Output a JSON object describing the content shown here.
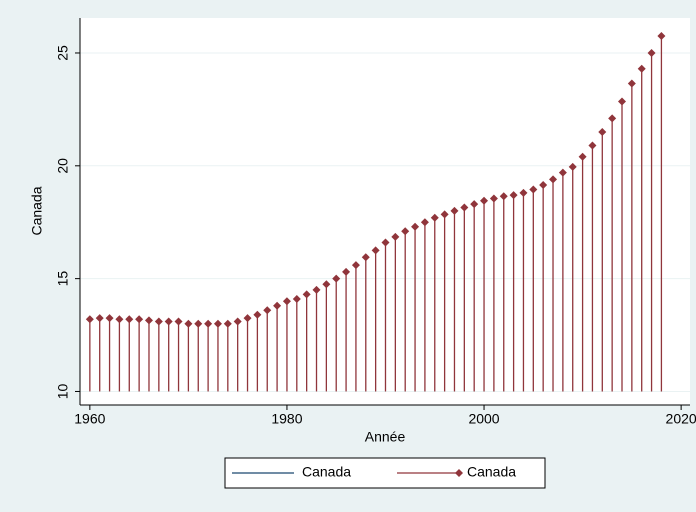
{
  "chart_data": {
    "type": "dropline",
    "x_label": "Année",
    "y_label": "Canada",
    "x": [
      1960,
      1961,
      1962,
      1963,
      1964,
      1965,
      1966,
      1967,
      1968,
      1969,
      1970,
      1971,
      1972,
      1973,
      1974,
      1975,
      1976,
      1977,
      1978,
      1979,
      1980,
      1981,
      1982,
      1983,
      1984,
      1985,
      1986,
      1987,
      1988,
      1989,
      1990,
      1991,
      1992,
      1993,
      1994,
      1995,
      1996,
      1997,
      1998,
      1999,
      2000,
      2001,
      2002,
      2003,
      2004,
      2005,
      2006,
      2007,
      2008,
      2009,
      2010,
      2011,
      2012,
      2013,
      2014,
      2015,
      2016,
      2017,
      2018
    ],
    "series": [
      {
        "name": "Canada",
        "color": "#1a476f",
        "marker": "none",
        "values": [
          null,
          null,
          null,
          null,
          null,
          null,
          null,
          null,
          null,
          null,
          null,
          null,
          null,
          null,
          null,
          null,
          null,
          null,
          null,
          null,
          null,
          null,
          null,
          null,
          null,
          null,
          null,
          null,
          null,
          null,
          null,
          null,
          null,
          null,
          null,
          null,
          null,
          null,
          null,
          null,
          null,
          null,
          null,
          null,
          null,
          null,
          null,
          null,
          null,
          null,
          null,
          null,
          null,
          null,
          null,
          null,
          null,
          null,
          null
        ]
      },
      {
        "name": "Canada",
        "color": "#90353b",
        "marker": "diamond",
        "values": [
          13.2,
          13.25,
          13.25,
          13.2,
          13.2,
          13.2,
          13.15,
          13.1,
          13.1,
          13.1,
          13.0,
          13.0,
          13.0,
          13.0,
          13.0,
          13.1,
          13.25,
          13.4,
          13.6,
          13.8,
          14.0,
          14.1,
          14.3,
          14.5,
          14.75,
          15.0,
          15.3,
          15.6,
          15.95,
          16.25,
          16.6,
          16.85,
          17.1,
          17.3,
          17.5,
          17.7,
          17.85,
          18.0,
          18.15,
          18.3,
          18.45,
          18.55,
          18.65,
          18.7,
          18.8,
          18.95,
          19.15,
          19.4,
          19.7,
          19.95,
          20.4,
          20.9,
          21.5,
          22.1,
          22.85,
          23.65,
          24.3,
          25.0,
          25.75
        ]
      }
    ],
    "xlim": [
      1959,
      2020.9
    ],
    "ylim": [
      9.4,
      26.55
    ],
    "xticks": [
      1960,
      1980,
      2000,
      2020
    ],
    "yticks": [
      10,
      15,
      20,
      25
    ],
    "grid": true,
    "legend": "bottom"
  }
}
